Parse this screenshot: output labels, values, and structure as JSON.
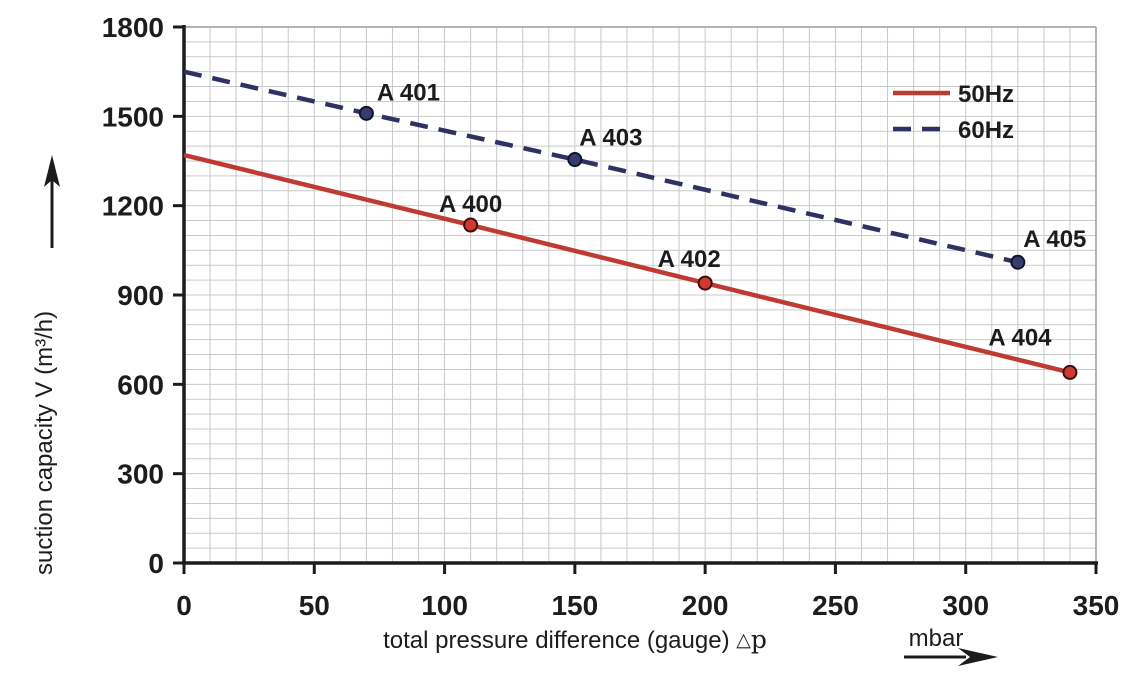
{
  "chart_data": {
    "type": "line",
    "title": "",
    "xlabel": "total pressure difference (gauge)",
    "xlabel_symbol": "△p",
    "x_unit": "mbar",
    "ylabel": "suction capacity V (m³/h)",
    "xlim": [
      0,
      350
    ],
    "ylim": [
      0,
      1800
    ],
    "x_ticks": [
      0,
      50,
      100,
      150,
      200,
      250,
      300,
      350
    ],
    "y_ticks": [
      0,
      300,
      600,
      900,
      1200,
      1500,
      1800
    ],
    "x_minor_step": 10,
    "y_minor_step": 50,
    "grid": true,
    "legend": {
      "position": "top-right",
      "entries": [
        {
          "label": "50Hz",
          "style": "solid",
          "color": "#bf3a32"
        },
        {
          "label": "60Hz",
          "style": "dashed",
          "color": "#2e3263"
        }
      ]
    },
    "series": [
      {
        "name": "50Hz",
        "color": "#bf3a32",
        "label_color": "#c0342e",
        "marker_fill": "#cd3a30",
        "marker_stroke": "#3f0d0b",
        "style": "solid",
        "line": [
          [
            0,
            1370
          ],
          [
            110,
            1135
          ],
          [
            200,
            940
          ],
          [
            340,
            640
          ]
        ],
        "points": [
          {
            "label": "A 400",
            "x": 110,
            "y": 1135,
            "label_offset": [
              0,
              -13
            ]
          },
          {
            "label": "A 402",
            "x": 200,
            "y": 940,
            "label_offset": [
              -16,
              -16
            ]
          },
          {
            "label": "A 404",
            "x": 340,
            "y": 640,
            "label_offset": [
              -50,
              -27
            ]
          }
        ]
      },
      {
        "name": "60Hz",
        "color": "#2e3263",
        "label_color": "#3d4274",
        "marker_fill": "#373d6b",
        "marker_stroke": "#101330",
        "style": "dashed",
        "line": [
          [
            0,
            1650
          ],
          [
            70,
            1510
          ],
          [
            150,
            1355
          ],
          [
            320,
            1010
          ]
        ],
        "points": [
          {
            "label": "A 401",
            "x": 70,
            "y": 1510,
            "label_offset": [
              42,
              -13
            ]
          },
          {
            "label": "A 403",
            "x": 150,
            "y": 1355,
            "label_offset": [
              36,
              -14
            ]
          },
          {
            "label": "A 405",
            "x": 320,
            "y": 1010,
            "label_offset": [
              37,
              -15
            ]
          }
        ]
      }
    ],
    "colors": {
      "grid": "#c9c9c9",
      "frame": "#9a9a9a",
      "axis": "#1c1c1c",
      "text": "#1c1c1c"
    }
  }
}
